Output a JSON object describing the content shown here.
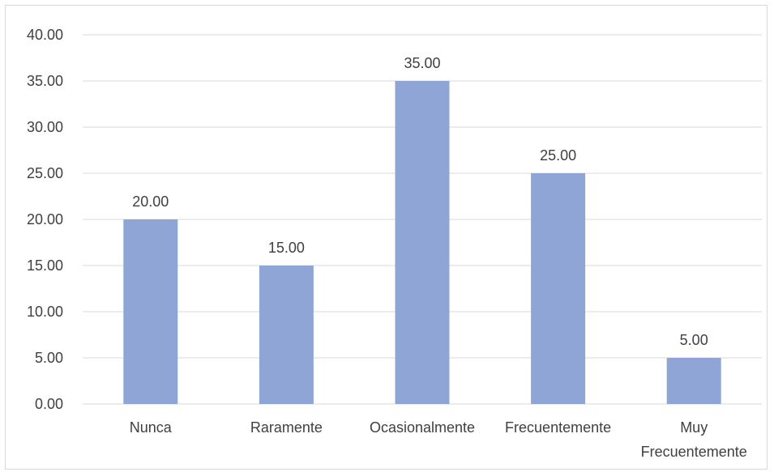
{
  "chart_data": {
    "type": "bar",
    "categories": [
      "Nunca",
      "Raramente",
      "Ocasionalmente",
      "Frecuentemente",
      "Muy Frecuentemente"
    ],
    "category_lines": [
      [
        "Nunca"
      ],
      [
        "Raramente"
      ],
      [
        "Ocasionalmente"
      ],
      [
        "Frecuentemente"
      ],
      [
        "Muy",
        "Frecuentemente"
      ]
    ],
    "values": [
      20,
      15,
      35,
      25,
      5
    ],
    "data_labels": [
      "20.00",
      "15.00",
      "35.00",
      "25.00",
      "5.00"
    ],
    "y_ticks": [
      "0.00",
      "5.00",
      "10.00",
      "15.00",
      "20.00",
      "25.00",
      "30.00",
      "35.00",
      "40.00"
    ],
    "ylim": [
      0,
      40
    ],
    "y_step": 5,
    "title": "",
    "xlabel": "",
    "ylabel": "",
    "grid": true,
    "legend": "none",
    "bar_color": "#8FA5D6",
    "grid_color": "#d9d9d9",
    "text_color": "#404040"
  }
}
